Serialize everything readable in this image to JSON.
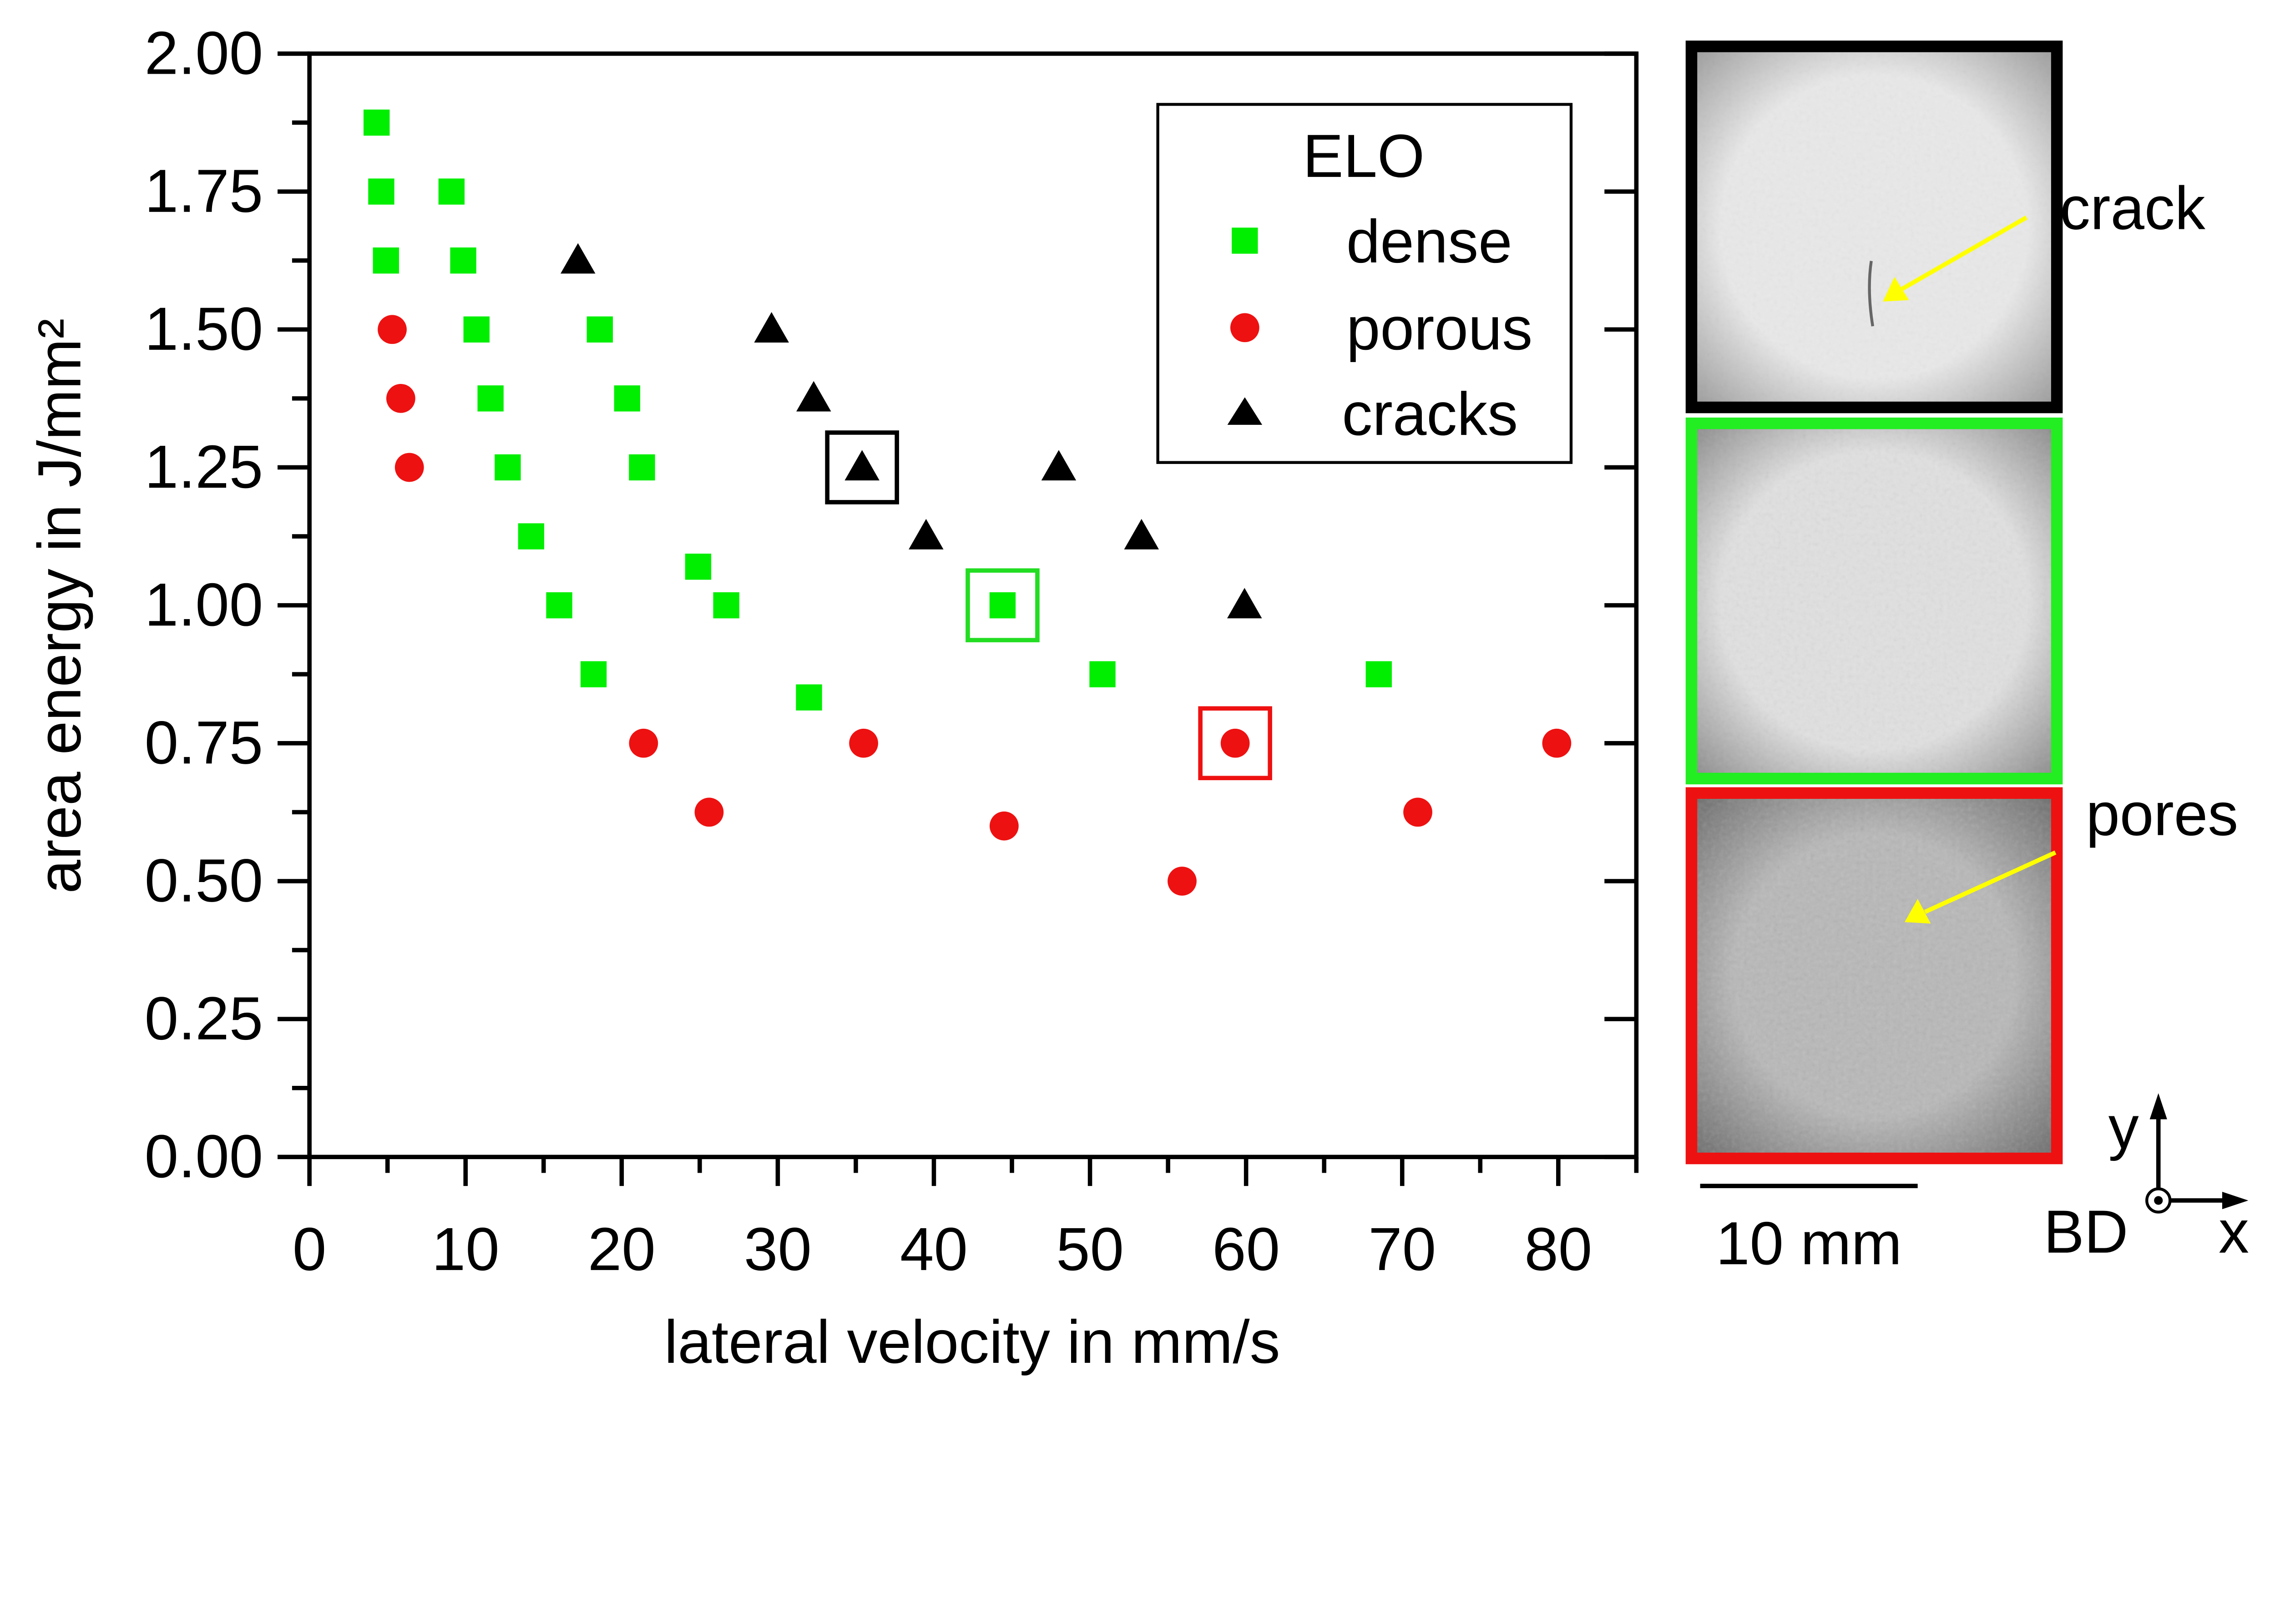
{
  "chart_data": {
    "type": "scatter",
    "xlabel": "lateral velocity in mm/s",
    "ylabel": "area energy in J/mm²",
    "xlim": [
      0,
      85
    ],
    "ylim": [
      0,
      2
    ],
    "xticks": [
      "0",
      "10",
      "20",
      "30",
      "40",
      "50",
      "60",
      "70",
      "80"
    ],
    "yticks": [
      "0.00",
      "0.25",
      "0.50",
      "0.75",
      "1.00",
      "1.25",
      "1.50",
      "1.75",
      "2.00"
    ],
    "grid": false,
    "legend": {
      "title": "ELO",
      "placement": "top-right"
    },
    "series": [
      {
        "name": "dense",
        "marker": "square",
        "color": "#00ee00",
        "x": [
          4.3,
          4.6,
          4.9,
          9.1,
          9.85,
          10.7,
          11.6,
          12.7,
          14.2,
          16.0,
          18.2,
          18.6,
          20.35,
          21.3,
          24.9,
          26.7,
          32.0,
          44.4,
          50.8,
          68.5
        ],
        "y": [
          1.875,
          1.75,
          1.625,
          1.75,
          1.625,
          1.5,
          1.375,
          1.25,
          1.125,
          1.0,
          0.875,
          1.5,
          1.375,
          1.25,
          1.07,
          1.0,
          0.833,
          1.0,
          0.875,
          0.875
        ]
      },
      {
        "name": "porous",
        "marker": "circle",
        "color": "#ee1111",
        "x": [
          5.3,
          5.85,
          6.4,
          21.4,
          25.6,
          35.5,
          44.5,
          55.9,
          59.3,
          71.0,
          79.9
        ],
        "y": [
          1.5,
          1.375,
          1.25,
          0.75,
          0.625,
          0.75,
          0.6,
          0.5,
          0.75,
          0.625,
          0.75
        ]
      },
      {
        "name": "cracks",
        "marker": "triangle",
        "color": "#000000",
        "x": [
          17.2,
          29.6,
          32.3,
          35.4,
          39.5,
          48.0,
          53.3,
          59.9
        ],
        "y": [
          1.625,
          1.5,
          1.375,
          1.25,
          1.125,
          1.25,
          1.125,
          1.0
        ]
      }
    ],
    "highlighted": [
      {
        "series": "cracks",
        "x": 35.4,
        "y": 1.25,
        "color": "#000000"
      },
      {
        "series": "dense",
        "x": 44.4,
        "y": 1.0,
        "color": "#22dd22"
      },
      {
        "series": "porous",
        "x": 59.3,
        "y": 0.75,
        "color": "#ee1111"
      }
    ]
  },
  "micrographs": {
    "items": [
      {
        "frame_color": "#000000",
        "label": "crack"
      },
      {
        "frame_color": "#22ee22",
        "label": ""
      },
      {
        "frame_color": "#ee1111",
        "label": "pores"
      }
    ],
    "arrow_color": "#ffff00",
    "scale_bar": "10 mm",
    "axes": {
      "y": "y",
      "x": "x",
      "z": "BD"
    }
  }
}
